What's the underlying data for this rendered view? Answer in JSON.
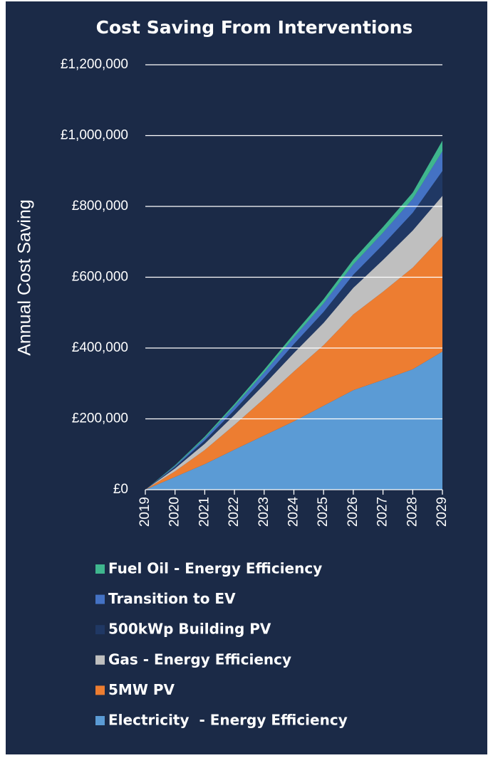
{
  "chart_data": {
    "type": "stacked_area",
    "title": "Cost Saving From Interventions",
    "y_label": "Annual Cost Saving",
    "categories": [
      "2019",
      "2020",
      "2021",
      "2022",
      "2023",
      "2024",
      "2025",
      "2026",
      "2027",
      "2028",
      "2029"
    ],
    "series": [
      {
        "name": "Electricity  - Energy Efficiency",
        "color": "#5b9bd5",
        "values": [
          0,
          36000,
          72000,
          113000,
          153000,
          193000,
          237000,
          281000,
          310000,
          340000,
          390000
        ]
      },
      {
        "name": "5MW PV",
        "color": "#ed7d31",
        "values": [
          0,
          16000,
          40000,
          70000,
          104000,
          141000,
          171000,
          214000,
          249000,
          287000,
          326000
        ]
      },
      {
        "name": "Gas - Energy Efficiency",
        "color": "#bfbfbf",
        "values": [
          0,
          8000,
          18000,
          28000,
          40000,
          52000,
          63000,
          75000,
          90000,
          105000,
          114000
        ]
      },
      {
        "name": "500kWp Building PV",
        "color": "#203864",
        "values": [
          0,
          4000,
          9000,
          14000,
          19000,
          25000,
          31000,
          37000,
          43000,
          50000,
          70000
        ]
      },
      {
        "name": "Transition to EV",
        "color": "#4472c4",
        "values": [
          0,
          3000,
          7000,
          11000,
          15000,
          19000,
          24000,
          29000,
          34000,
          39000,
          56000
        ]
      },
      {
        "name": "Fuel Oil - Energy Efficiency",
        "color": "#3fb68e",
        "values": [
          0,
          2000,
          4000,
          6000,
          8000,
          10000,
          12000,
          14000,
          16000,
          18000,
          30000
        ]
      }
    ],
    "ylim": [
      0,
      1200000
    ],
    "yticks": [
      {
        "value": 0,
        "label": "£0"
      },
      {
        "value": 200000,
        "label": "£200,000"
      },
      {
        "value": 400000,
        "label": "£400,000"
      },
      {
        "value": 600000,
        "label": "£600,000"
      },
      {
        "value": 800000,
        "label": "£800,000"
      },
      {
        "value": 1000000,
        "label": "£1,000,000"
      },
      {
        "value": 1200000,
        "label": "£1,200,000"
      }
    ],
    "grid": true,
    "background": "#1b2a47"
  }
}
